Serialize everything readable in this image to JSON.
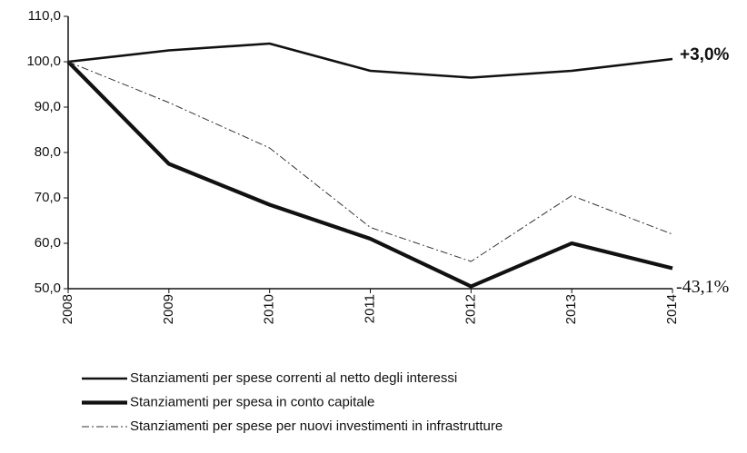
{
  "chart_data": {
    "type": "line",
    "categories": [
      "2008",
      "2009",
      "2010",
      "2011",
      "2012",
      "2013",
      "2014"
    ],
    "series": [
      {
        "name": "Stanziamenti per spese correnti al netto degli interessi",
        "color": "#111111",
        "values": [
          100,
          102.5,
          104,
          98,
          96.5,
          98,
          100.6
        ]
      },
      {
        "name": "Stanziamenti per spesa in conto capitale",
        "color": "#111111",
        "values": [
          100,
          77.5,
          68.5,
          61,
          50.5,
          60,
          54.5
        ]
      },
      {
        "name": "Stanziamenti per spese per nuovi investimenti in infrastrutture",
        "color": "#333333",
        "values": [
          100,
          91,
          81,
          63.5,
          56,
          70.5,
          62
        ]
      }
    ],
    "ylim": [
      50,
      110
    ],
    "yticks": [
      {
        "value": 50,
        "label": "50,0"
      },
      {
        "value": 60,
        "label": "60,0"
      },
      {
        "value": 70,
        "label": "70,0"
      },
      {
        "value": 80,
        "label": "80,0"
      },
      {
        "value": 90,
        "label": "90,0"
      },
      {
        "value": 100,
        "label": "100,0"
      },
      {
        "value": 110,
        "label": "110,0"
      }
    ],
    "annotations": [
      "+3,0%",
      "-43,1%"
    ],
    "grid": false,
    "legend": "bottom"
  }
}
